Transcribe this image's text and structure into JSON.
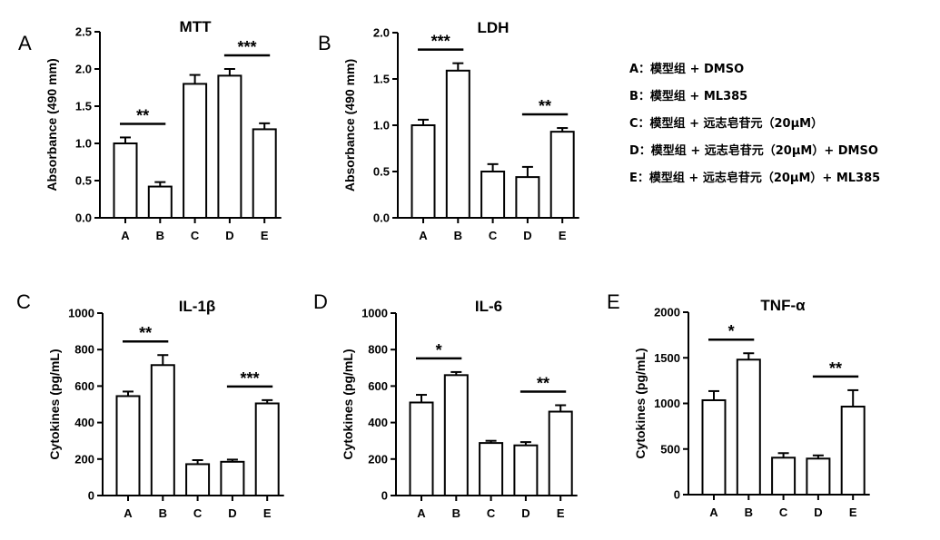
{
  "legend": [
    "A：模型组 + DMSO",
    "B：模型组 + ML385",
    "C：模型组 + 远志皂苷元（20μM）",
    "D：模型组 + 远志皂苷元（20μM）+ DMSO",
    "E：模型组 + 远志皂苷元（20μM）+ ML385"
  ],
  "chart_data": [
    {
      "panel": "A",
      "type": "bar",
      "title": "MTT",
      "ylabel": "Absorbance (490 mm)",
      "categories": [
        "A",
        "B",
        "C",
        "D",
        "E"
      ],
      "values": [
        1.0,
        0.42,
        1.8,
        1.91,
        1.19
      ],
      "errors": [
        0.08,
        0.06,
        0.12,
        0.09,
        0.08
      ],
      "ylim": [
        0,
        2.5
      ],
      "yticks": [
        "0.0",
        "0.5",
        "1.0",
        "1.5",
        "2.0",
        "2.5"
      ],
      "significance": [
        {
          "from": "A",
          "to": "B",
          "label": "**"
        },
        {
          "from": "D",
          "to": "E",
          "label": "***"
        }
      ]
    },
    {
      "panel": "B",
      "type": "bar",
      "title": "LDH",
      "ylabel": "Absorbance (490 mm)",
      "categories": [
        "A",
        "B",
        "C",
        "D",
        "E"
      ],
      "values": [
        1.0,
        1.59,
        0.5,
        0.44,
        0.93
      ],
      "errors": [
        0.06,
        0.08,
        0.08,
        0.11,
        0.04
      ],
      "ylim": [
        0,
        2.0
      ],
      "yticks": [
        "0.0",
        "0.5",
        "1.0",
        "1.5",
        "2.0"
      ],
      "significance": [
        {
          "from": "A",
          "to": "B",
          "label": "***"
        },
        {
          "from": "D",
          "to": "E",
          "label": "**"
        }
      ]
    },
    {
      "panel": "C",
      "type": "bar",
      "title": "IL-1β",
      "ylabel": "Cytokines (pg/mL)",
      "categories": [
        "A",
        "B",
        "C",
        "D",
        "E"
      ],
      "values": [
        545,
        715,
        172,
        185,
        505
      ],
      "errors": [
        25,
        55,
        22,
        12,
        18
      ],
      "ylim": [
        0,
        1000
      ],
      "yticks": [
        "0",
        "200",
        "400",
        "600",
        "800",
        "1000"
      ],
      "significance": [
        {
          "from": "A",
          "to": "B",
          "label": "**"
        },
        {
          "from": "D",
          "to": "E",
          "label": "***"
        }
      ]
    },
    {
      "panel": "D",
      "type": "bar",
      "title": "IL-6",
      "ylabel": "Cytokines (pg/mL)",
      "categories": [
        "A",
        "B",
        "C",
        "D",
        "E"
      ],
      "values": [
        510,
        660,
        288,
        275,
        460
      ],
      "errors": [
        42,
        17,
        12,
        18,
        35
      ],
      "ylim": [
        0,
        1000
      ],
      "yticks": [
        "0",
        "200",
        "400",
        "600",
        "800",
        "1000"
      ],
      "significance": [
        {
          "from": "A",
          "to": "B",
          "label": "*"
        },
        {
          "from": "D",
          "to": "E",
          "label": "**"
        }
      ]
    },
    {
      "panel": "E",
      "type": "bar",
      "title": "TNF-α",
      "ylabel": "Cytokines (pg/mL)",
      "categories": [
        "A",
        "B",
        "C",
        "D",
        "E"
      ],
      "values": [
        1035,
        1480,
        405,
        395,
        965
      ],
      "errors": [
        100,
        70,
        50,
        35,
        180
      ],
      "ylim": [
        0,
        2000
      ],
      "yticks": [
        "0",
        "500",
        "1000",
        "1500",
        "2000"
      ],
      "significance": [
        {
          "from": "A",
          "to": "B",
          "label": "*"
        },
        {
          "from": "D",
          "to": "E",
          "label": "**"
        }
      ]
    }
  ]
}
